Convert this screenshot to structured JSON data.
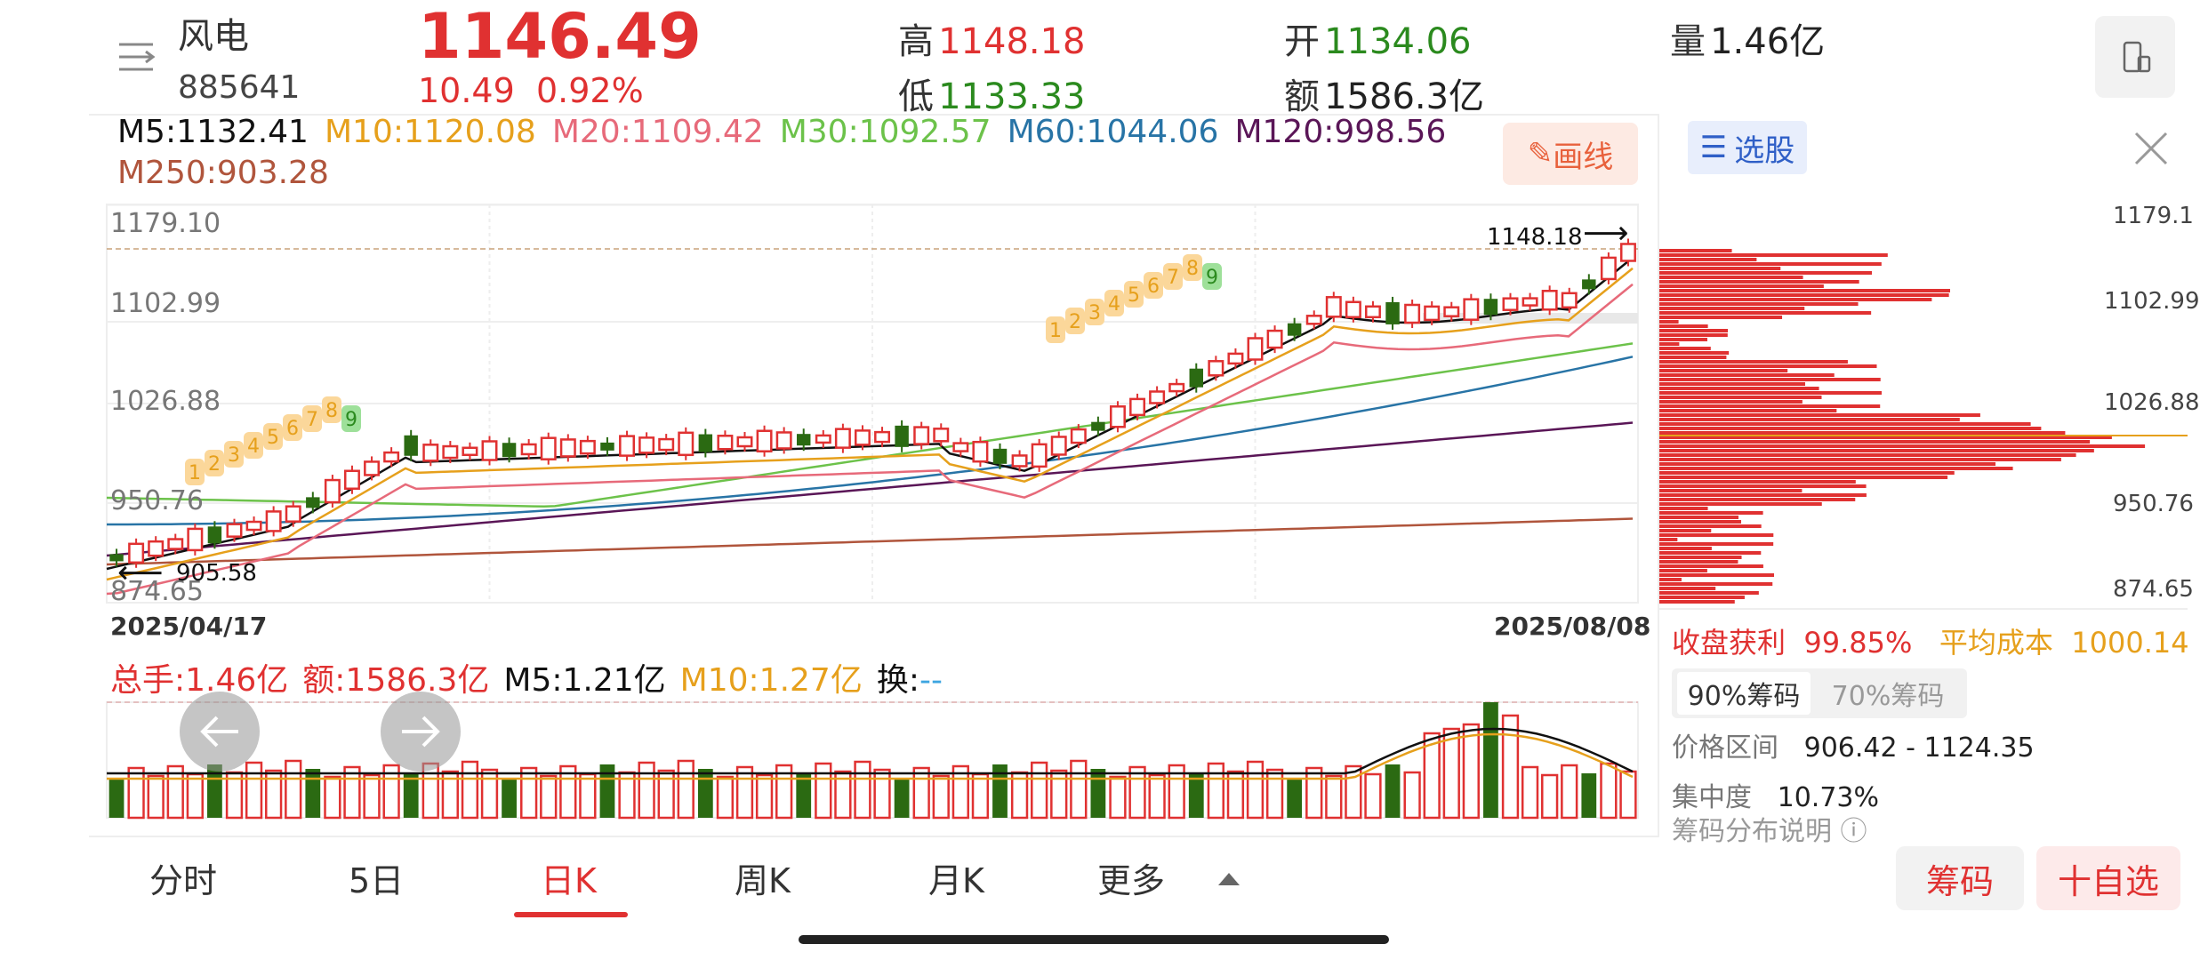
{
  "header": {
    "name": "风电",
    "code": "885641",
    "price": "1146.49",
    "change": "10.49",
    "change_pct": "0.92%",
    "high_label": "高",
    "high": "1148.18",
    "low_label": "低",
    "low": "1133.33",
    "open_label": "开",
    "open": "1134.06",
    "amount_label": "额",
    "amount": "1586.3亿",
    "volume_label": "量",
    "volume": "1.46亿"
  },
  "ma": {
    "m5": "M5:1132.41",
    "m10": "M10:1120.08",
    "m20": "M20:1109.42",
    "m30": "M30:1092.57",
    "m60": "M60:1044.06",
    "m120": "M120:998.56",
    "m250": "M250:903.28"
  },
  "draw_button": "画线",
  "price_axis": [
    "1179.10",
    "1102.99",
    "1026.88",
    "950.76",
    "874.65"
  ],
  "marks": {
    "high": "1148.18",
    "low": "905.58"
  },
  "dates": {
    "start": "2025/04/17",
    "end": "2025/08/08"
  },
  "volume_header": {
    "total": "总手:1.46亿",
    "amount": "额:1586.3亿",
    "m5": "M5:1.21亿",
    "m10": "M10:1.27亿",
    "turnover_label": "换:",
    "turnover": "--"
  },
  "chips": {
    "title": "选股",
    "axis": [
      "1179.1",
      "1102.99",
      "1026.88",
      "950.76",
      "874.65"
    ],
    "profit_label": "收盘获利",
    "profit": "99.85%",
    "avgcost_label": "平均成本",
    "avgcost": "1000.14",
    "tab_90": "90%筹码",
    "tab_70": "70%筹码",
    "range_label": "价格区间",
    "range": "906.42 - 1124.35",
    "conc_label": "集中度",
    "conc": "10.73%",
    "explain": "筹码分布说明"
  },
  "tabs": [
    "分时",
    "5日",
    "日K",
    "周K",
    "月K",
    "更多"
  ],
  "active_tab": "日K",
  "buttons": {
    "chips": "筹码",
    "watch": "十自选"
  },
  "colors": {
    "up": "#e03131",
    "down": "#2b6a12",
    "m5": "#111111",
    "m10": "#e6a01c",
    "m20": "#e76a7a",
    "m30": "#6cc24a",
    "m60": "#2874a6",
    "m120": "#5a1657",
    "m250": "#b0553c"
  },
  "chart_data": {
    "type": "candlestick",
    "x_range": [
      "2025/04/17",
      "2025/08/08"
    ],
    "ylim": [
      874.65,
      1179.1
    ],
    "visible_high": 1148.18,
    "visible_low": 905.58,
    "last_close": 1146.49,
    "td_sequence_counts_1": [
      "1",
      "2",
      "3",
      "4",
      "5",
      "6",
      "7",
      "8",
      "9"
    ],
    "td_sequence_counts_2": [
      "1",
      "2",
      "3",
      "4",
      "5",
      "6",
      "7",
      "8",
      "9"
    ]
  }
}
